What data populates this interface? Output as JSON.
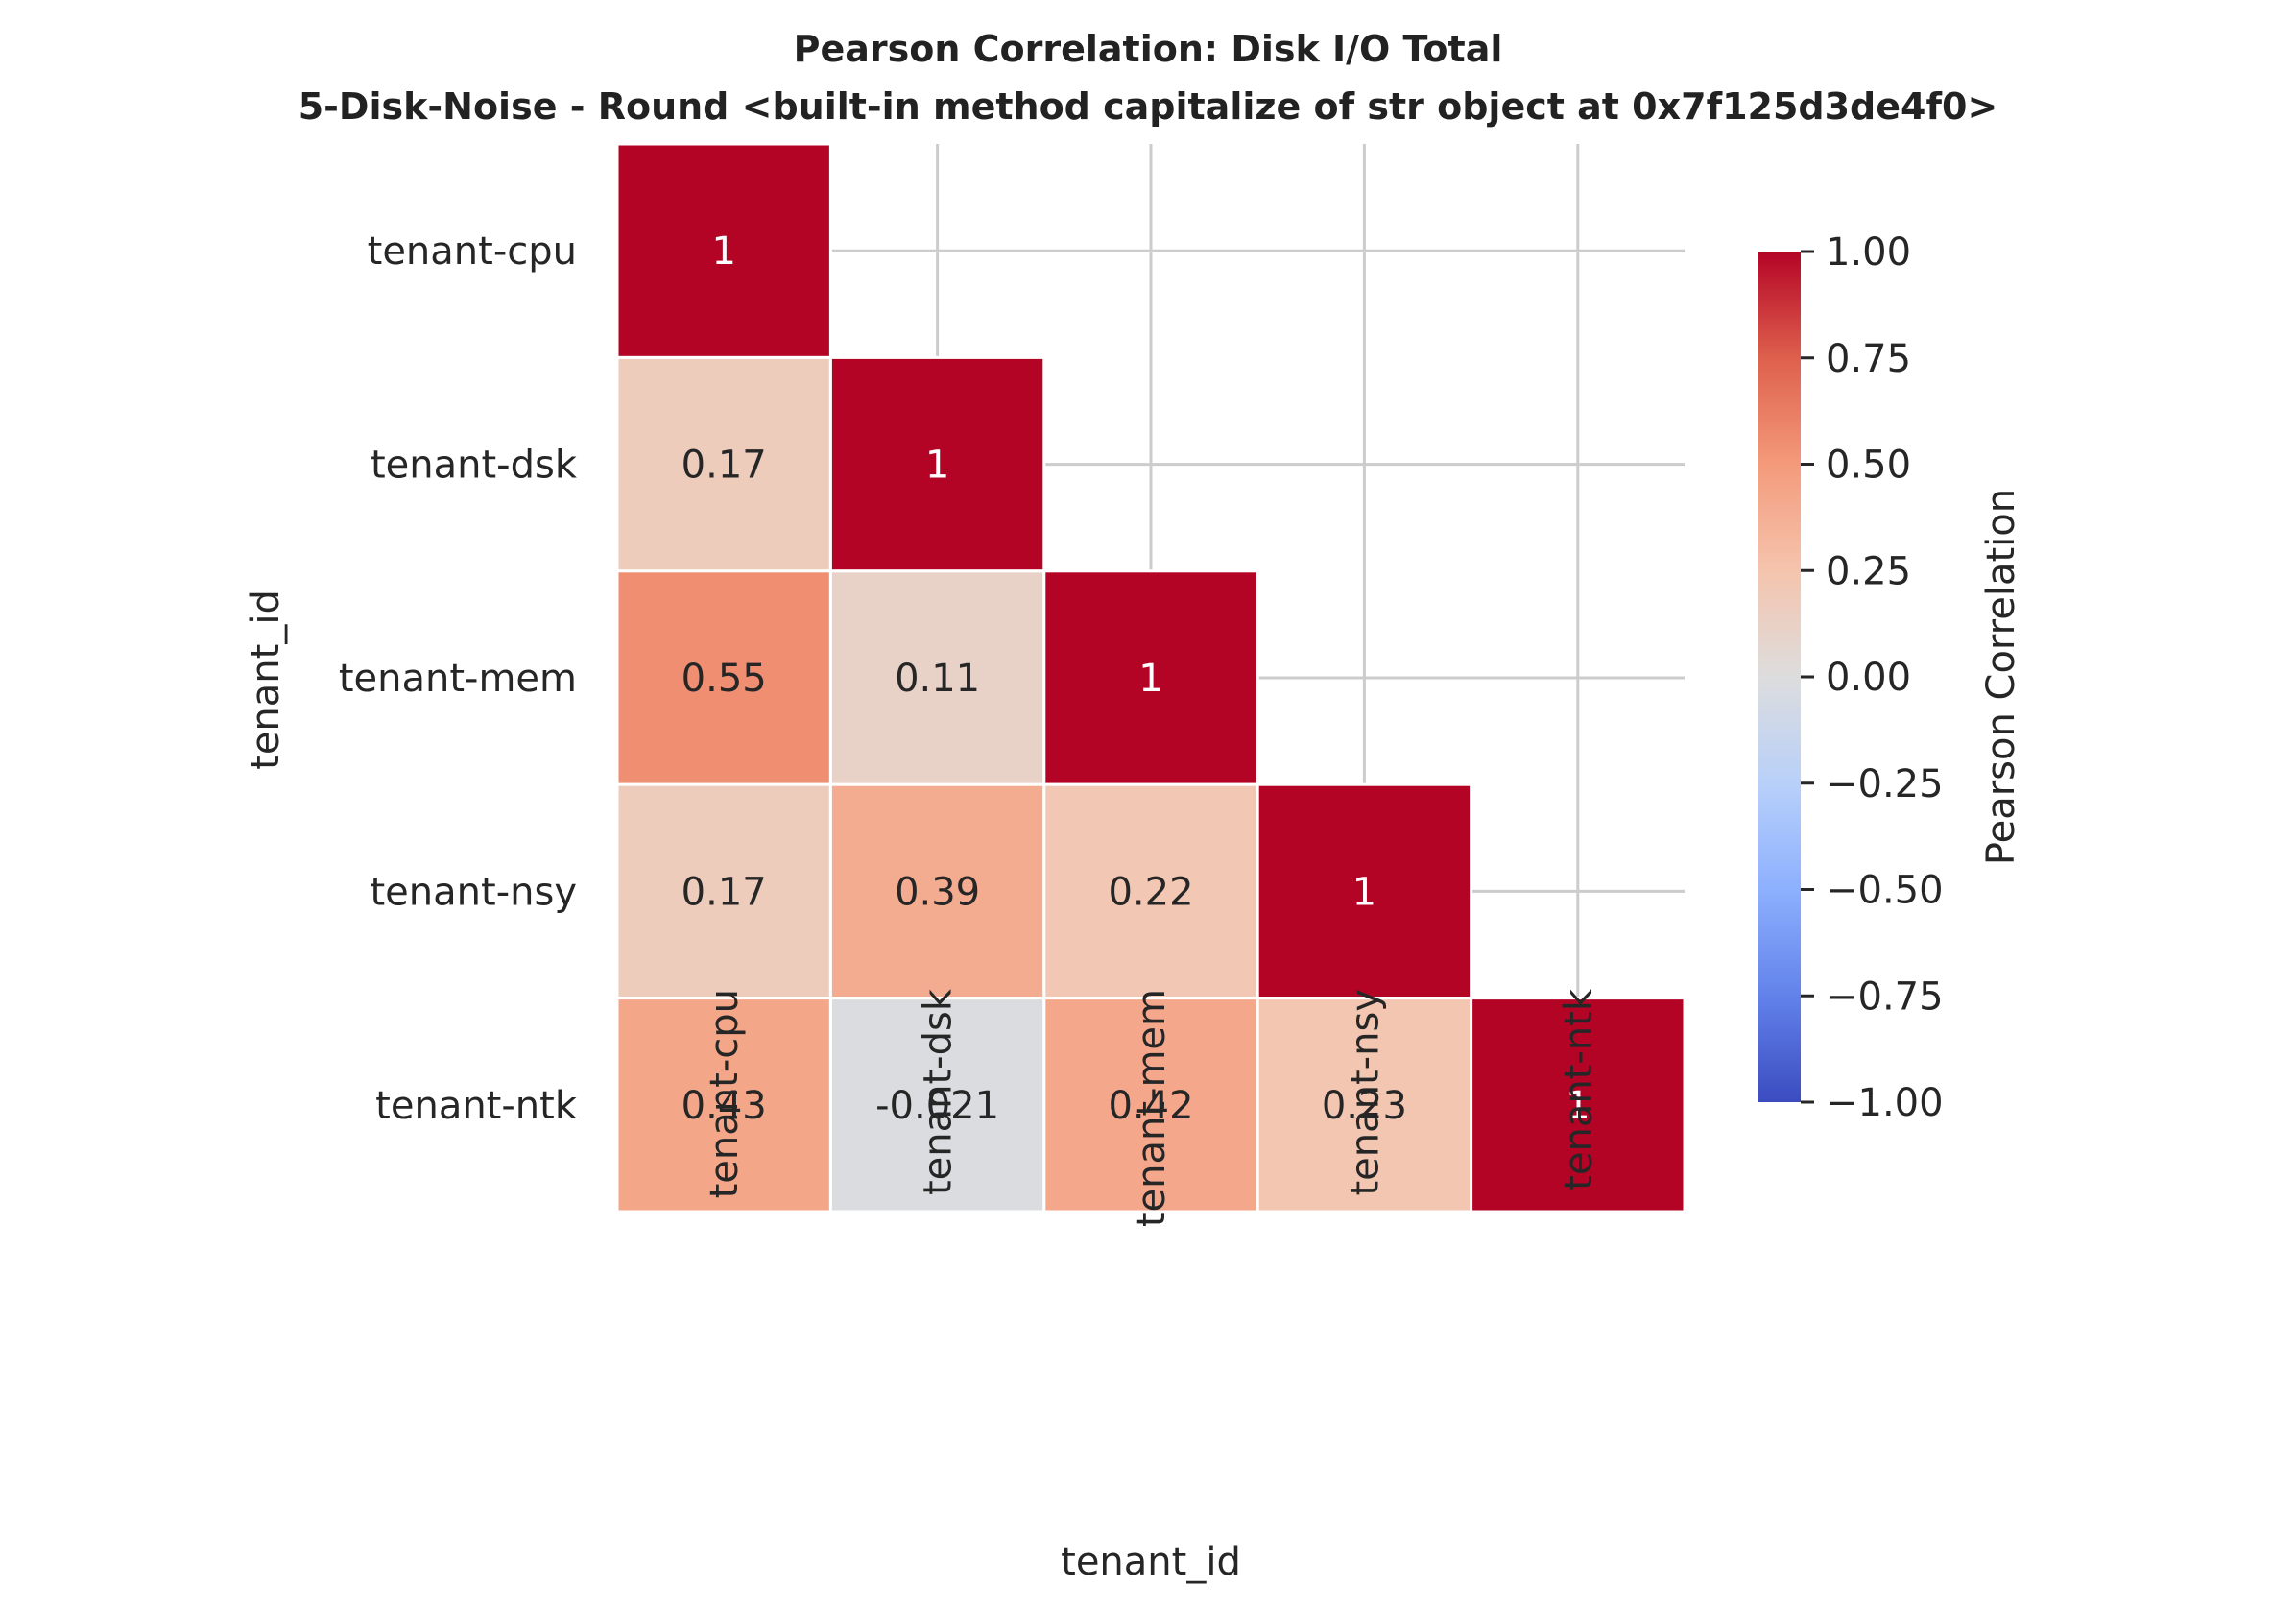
{
  "chart_data": {
    "type": "heatmap",
    "title": "Pearson Correlation: Disk I/O Total",
    "subtitle": "5-Disk-Noise - Round <built-in method capitalize of str object at 0x7f125d3de4f0>",
    "xlabel": "tenant_id",
    "ylabel": "tenant_id",
    "rows": [
      "tenant-cpu",
      "tenant-dsk",
      "tenant-mem",
      "tenant-nsy",
      "tenant-ntk"
    ],
    "columns": [
      "tenant-cpu",
      "tenant-dsk",
      "tenant-mem",
      "tenant-nsy",
      "tenant-ntk"
    ],
    "mask": "upper triangle hidden",
    "values": [
      [
        1,
        null,
        null,
        null,
        null
      ],
      [
        0.17,
        1,
        null,
        null,
        null
      ],
      [
        0.55,
        0.11,
        1,
        null,
        null
      ],
      [
        0.17,
        0.39,
        0.22,
        1,
        null
      ],
      [
        0.43,
        -0.021,
        0.42,
        0.23,
        1
      ]
    ],
    "labels": [
      [
        "1",
        "",
        "",
        "",
        ""
      ],
      [
        "0.17",
        "1",
        "",
        "",
        ""
      ],
      [
        "0.55",
        "0.11",
        "1",
        "",
        ""
      ],
      [
        "0.17",
        "0.39",
        "0.22",
        "1",
        ""
      ],
      [
        "0.43",
        "-0.021",
        "0.42",
        "0.23",
        "1"
      ]
    ],
    "colormap": "coolwarm",
    "vmin": -1,
    "vmax": 1,
    "colorbar": {
      "label": "Pearson Correlation",
      "ticks": [
        1.0,
        0.75,
        0.5,
        0.25,
        0.0,
        -0.25,
        -0.5,
        -0.75,
        -1.0
      ],
      "tick_labels": [
        "1.00",
        "0.75",
        "0.50",
        "0.25",
        "0.00",
        "−0.25",
        "−0.50",
        "−0.75",
        "−1.00"
      ]
    },
    "grid": true,
    "grid_color": "#cccccc",
    "text_color_dark": "#262626",
    "text_color_light": "#ffffff"
  }
}
